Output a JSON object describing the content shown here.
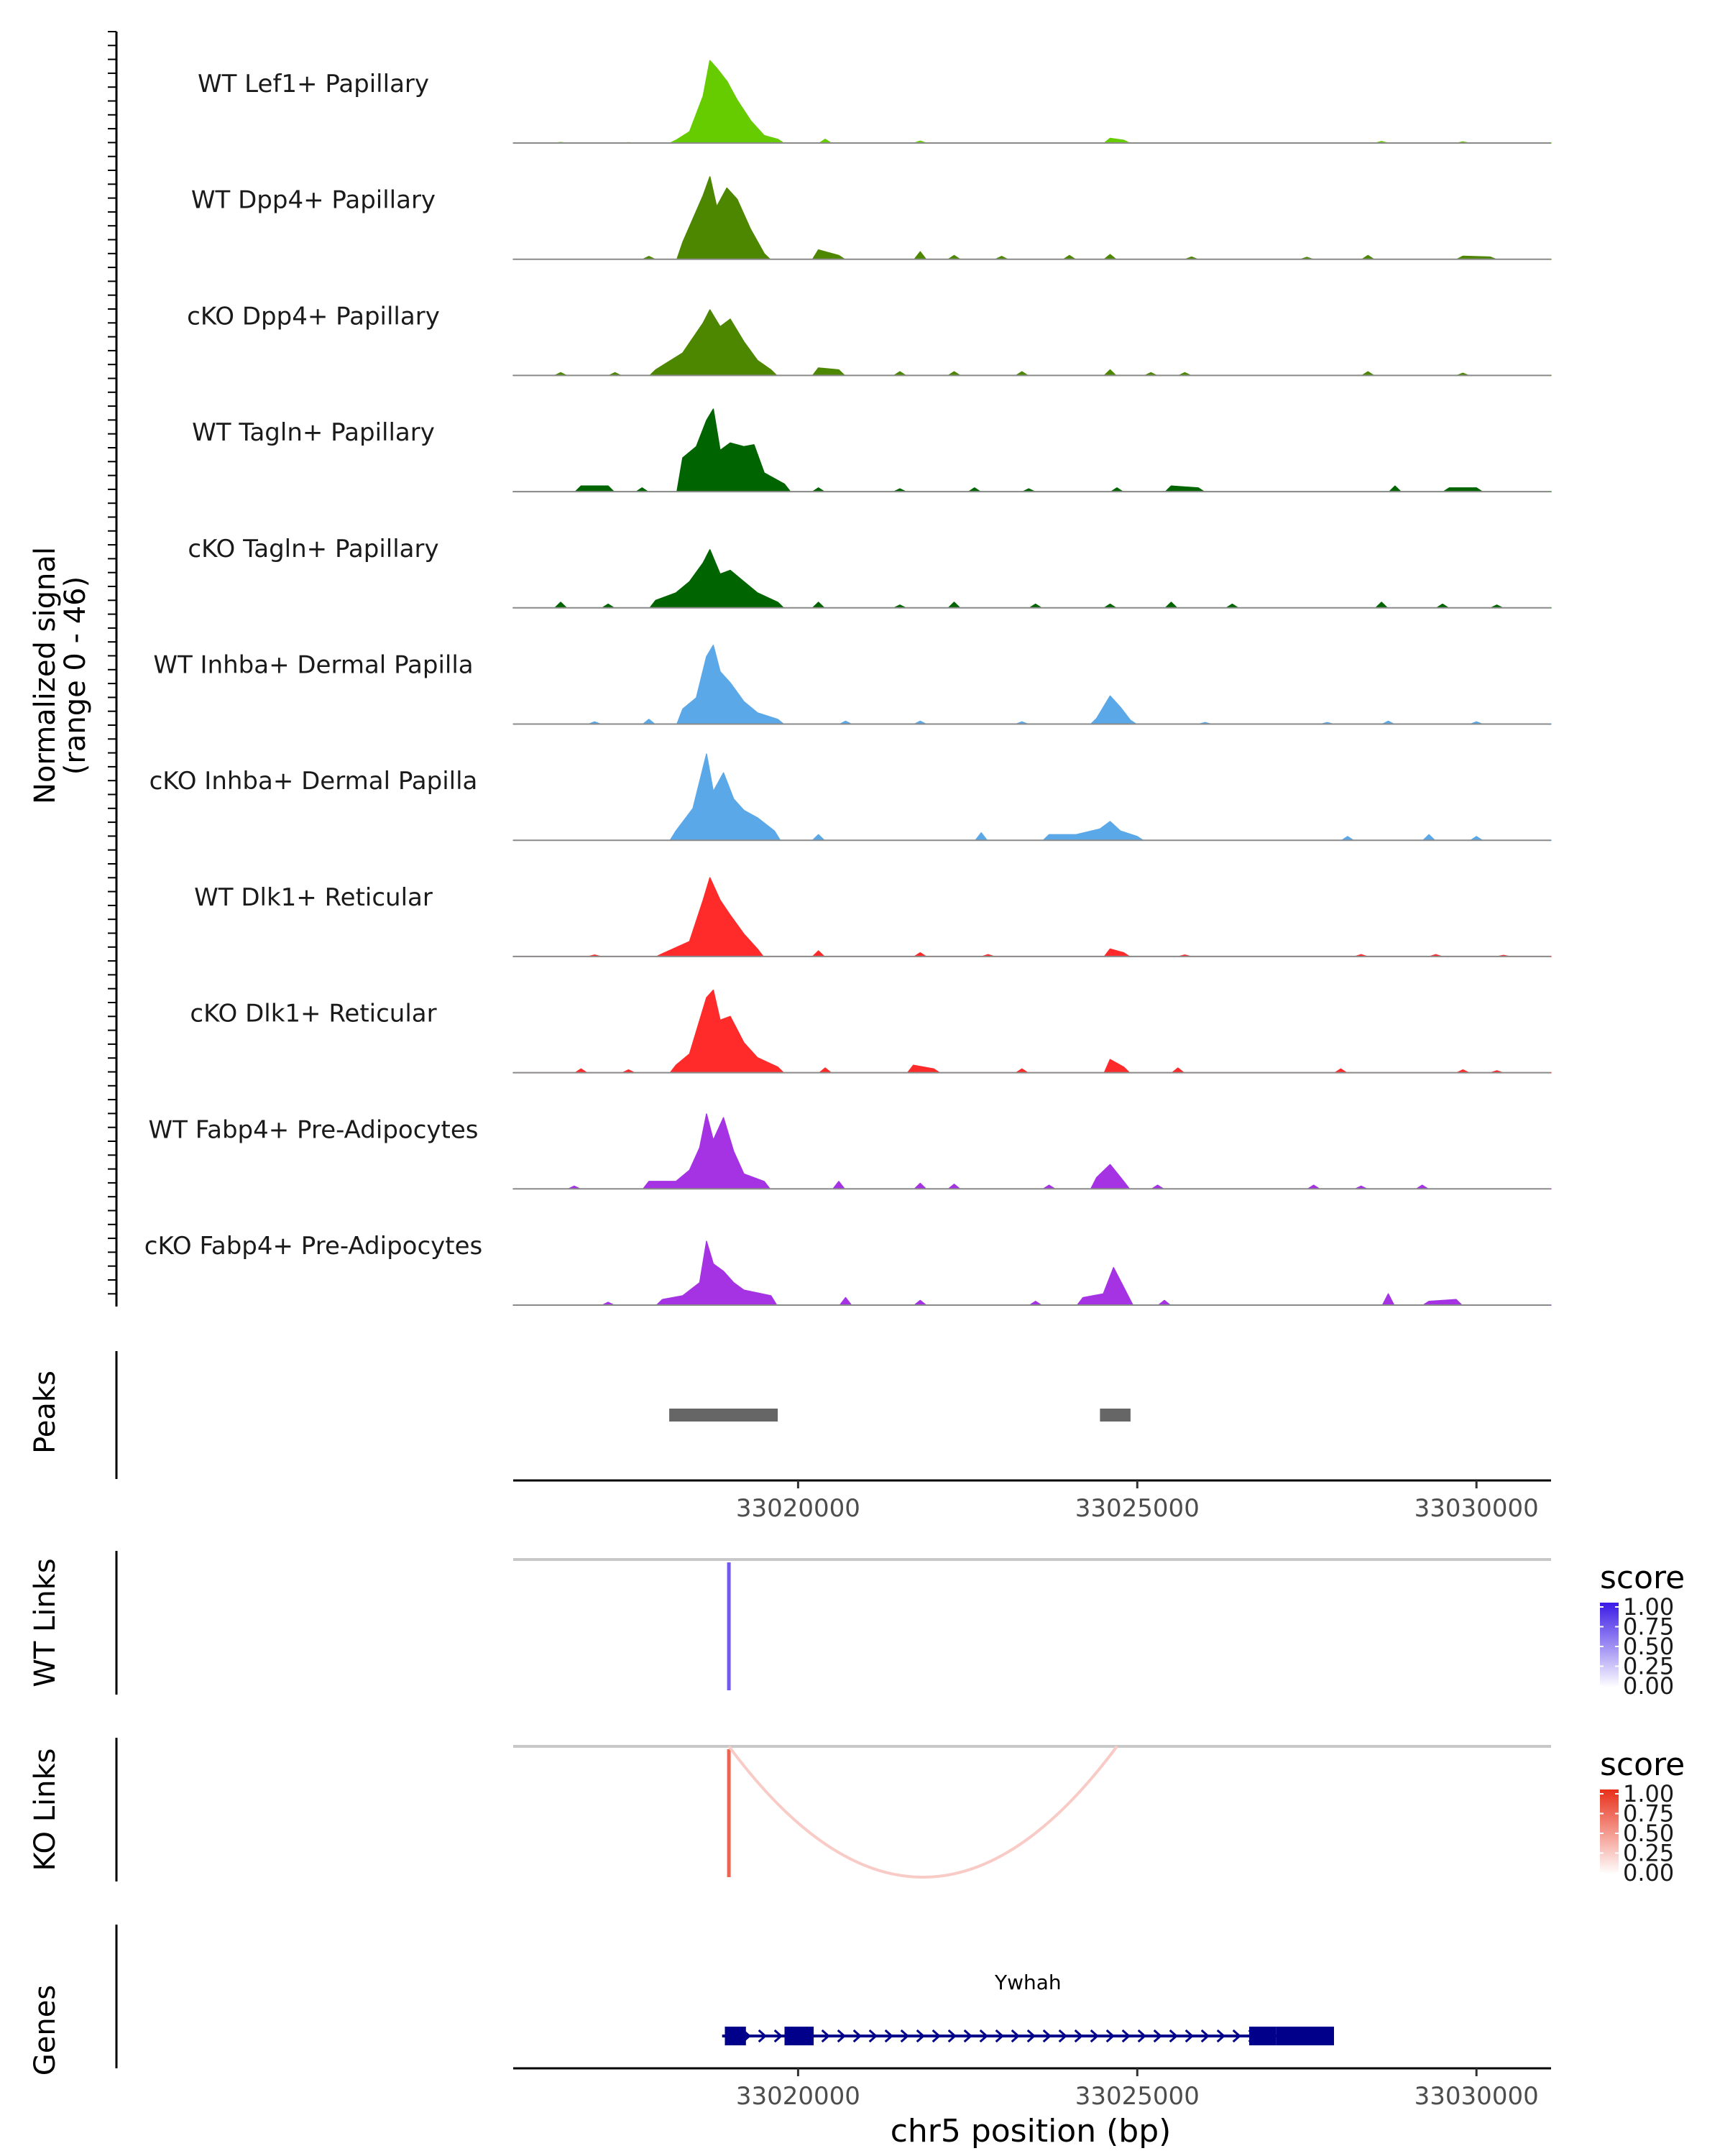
{
  "chart_data": {
    "type": "area",
    "title": "",
    "xlabel": "chr5 position (bp)",
    "x_range": [
      33015800,
      33031100
    ],
    "x_ticks": [
      33020000,
      33025000,
      33030000
    ],
    "x_tick_labels": [
      "33020000",
      "33025000",
      "33030000"
    ],
    "coverage": {
      "ylabel_line1": "Normalized signal",
      "ylabel_line2": "(range 0 - 46)",
      "y_range": [
        0,
        46
      ],
      "tracks": [
        {
          "name": "WT Lef1+ Papillary",
          "color": "#66CC00",
          "signal": [
            [
              33016500,
              0.3
            ],
            [
              33017500,
              0.2
            ],
            [
              33018200,
              1.5
            ],
            [
              33018400,
              6
            ],
            [
              33018600,
              25
            ],
            [
              33018700,
              44
            ],
            [
              33018800,
              40
            ],
            [
              33018950,
              33
            ],
            [
              33019100,
              23
            ],
            [
              33019300,
              12
            ],
            [
              33019500,
              4
            ],
            [
              33019700,
              2
            ],
            [
              33020400,
              2
            ],
            [
              33021800,
              1
            ],
            [
              33024600,
              2.5
            ],
            [
              33024800,
              1.5
            ],
            [
              33028600,
              0.8
            ],
            [
              33029800,
              0.6
            ]
          ]
        },
        {
          "name": "WT Dpp4+ Papillary",
          "color": "#4D8700",
          "signal": [
            [
              33017800,
              1.5
            ],
            [
              33018300,
              9
            ],
            [
              33018600,
              34
            ],
            [
              33018700,
              44
            ],
            [
              33018800,
              28
            ],
            [
              33018950,
              38
            ],
            [
              33019100,
              32
            ],
            [
              33019300,
              16
            ],
            [
              33019500,
              3
            ],
            [
              33020300,
              5
            ],
            [
              33020600,
              2
            ],
            [
              33021800,
              4
            ],
            [
              33022300,
              2
            ],
            [
              33023000,
              1.5
            ],
            [
              33024000,
              2
            ],
            [
              33024600,
              2.5
            ],
            [
              33025800,
              1.2
            ],
            [
              33027500,
              1
            ],
            [
              33028400,
              2
            ],
            [
              33029800,
              1.6
            ],
            [
              33030200,
              1.2
            ]
          ]
        },
        {
          "name": "cKO Dpp4+ Papillary",
          "color": "#4D8700",
          "signal": [
            [
              33016500,
              1.5
            ],
            [
              33017300,
              1.5
            ],
            [
              33017900,
              3
            ],
            [
              33018300,
              12
            ],
            [
              33018600,
              28
            ],
            [
              33018700,
              35
            ],
            [
              33018850,
              26
            ],
            [
              33019000,
              30
            ],
            [
              33019200,
              18
            ],
            [
              33019400,
              8
            ],
            [
              33019600,
              3
            ],
            [
              33020300,
              4
            ],
            [
              33020600,
              3
            ],
            [
              33021500,
              2
            ],
            [
              33022300,
              2
            ],
            [
              33023300,
              2
            ],
            [
              33024600,
              3
            ],
            [
              33025200,
              1.5
            ],
            [
              33025700,
              1.5
            ],
            [
              33028400,
              2
            ],
            [
              33029800,
              1.2
            ]
          ]
        },
        {
          "name": "WT Tagln+ Papillary",
          "color": "#006400",
          "signal": [
            [
              33016800,
              3
            ],
            [
              33017200,
              3
            ],
            [
              33017700,
              2
            ],
            [
              33018300,
              18
            ],
            [
              33018500,
              24
            ],
            [
              33018650,
              38
            ],
            [
              33018750,
              44
            ],
            [
              33018850,
              22
            ],
            [
              33019000,
              26
            ],
            [
              33019200,
              24
            ],
            [
              33019350,
              25
            ],
            [
              33019500,
              10
            ],
            [
              33019800,
              4
            ],
            [
              33020300,
              2
            ],
            [
              33021500,
              1.5
            ],
            [
              33022600,
              2
            ],
            [
              33023400,
              1.5
            ],
            [
              33024700,
              2
            ],
            [
              33025500,
              3
            ],
            [
              33025900,
              2
            ],
            [
              33028800,
              3
            ],
            [
              33029600,
              2
            ],
            [
              33030000,
              2
            ]
          ]
        },
        {
          "name": "cKO Tagln+ Papillary",
          "color": "#006400",
          "signal": [
            [
              33016500,
              3
            ],
            [
              33017200,
              2
            ],
            [
              33017900,
              4
            ],
            [
              33018200,
              8
            ],
            [
              33018400,
              14
            ],
            [
              33018600,
              24
            ],
            [
              33018700,
              31
            ],
            [
              33018850,
              18
            ],
            [
              33019000,
              20
            ],
            [
              33019200,
              14
            ],
            [
              33019400,
              8
            ],
            [
              33019700,
              3
            ],
            [
              33020300,
              3
            ],
            [
              33021500,
              1.5
            ],
            [
              33022300,
              3
            ],
            [
              33023500,
              2
            ],
            [
              33024600,
              2
            ],
            [
              33025500,
              3
            ],
            [
              33026400,
              2
            ],
            [
              33028600,
              3
            ],
            [
              33029500,
              2
            ],
            [
              33030300,
              1.5
            ]
          ]
        },
        {
          "name": "WT Inhba+ Dermal Papilla",
          "color": "#5BA8E8",
          "signal": [
            [
              33017000,
              1.2
            ],
            [
              33017800,
              2.5
            ],
            [
              33018300,
              8
            ],
            [
              33018500,
              14
            ],
            [
              33018650,
              36
            ],
            [
              33018750,
              42
            ],
            [
              33018850,
              28
            ],
            [
              33019000,
              22
            ],
            [
              33019200,
              12
            ],
            [
              33019400,
              6
            ],
            [
              33019700,
              2.5
            ],
            [
              33020700,
              1.5
            ],
            [
              33021800,
              1.5
            ],
            [
              33023300,
              1.2
            ],
            [
              33024400,
              3
            ],
            [
              33024600,
              15
            ],
            [
              33024750,
              9
            ],
            [
              33024900,
              2
            ],
            [
              33026000,
              0.8
            ],
            [
              33027800,
              0.8
            ],
            [
              33028700,
              1.5
            ],
            [
              33030000,
              1.2
            ]
          ]
        },
        {
          "name": "cKO Inhba+ Dermal Papilla",
          "color": "#5BA8E8",
          "signal": [
            [
              33018200,
              5
            ],
            [
              33018450,
              17
            ],
            [
              33018650,
              46
            ],
            [
              33018750,
              26
            ],
            [
              33018900,
              36
            ],
            [
              33019050,
              22
            ],
            [
              33019200,
              16
            ],
            [
              33019400,
              12
            ],
            [
              33019650,
              5
            ],
            [
              33020300,
              3
            ],
            [
              33022700,
              4
            ],
            [
              33023700,
              3
            ],
            [
              33024100,
              3
            ],
            [
              33024450,
              6
            ],
            [
              33024600,
              10
            ],
            [
              33024750,
              5
            ],
            [
              33025000,
              2
            ],
            [
              33028100,
              2
            ],
            [
              33029300,
              3
            ],
            [
              33030000,
              2
            ]
          ]
        },
        {
          "name": "WT Dlk1+ Reticular",
          "color": "#FF2A2A",
          "signal": [
            [
              33017000,
              0.8
            ],
            [
              33018000,
              1.5
            ],
            [
              33018400,
              8
            ],
            [
              33018600,
              30
            ],
            [
              33018700,
              42
            ],
            [
              33018850,
              30
            ],
            [
              33019000,
              22
            ],
            [
              33019200,
              12
            ],
            [
              33019400,
              4
            ],
            [
              33020300,
              3
            ],
            [
              33021800,
              2
            ],
            [
              33022800,
              1
            ],
            [
              33024600,
              4
            ],
            [
              33024800,
              2
            ],
            [
              33025700,
              0.8
            ],
            [
              33028300,
              1
            ],
            [
              33029400,
              1
            ],
            [
              33030400,
              0.6
            ]
          ]
        },
        {
          "name": "cKO Dlk1+ Reticular",
          "color": "#FF2A2A",
          "signal": [
            [
              33016800,
              2
            ],
            [
              33017500,
              1.5
            ],
            [
              33018200,
              4
            ],
            [
              33018400,
              10
            ],
            [
              33018650,
              40
            ],
            [
              33018750,
              44
            ],
            [
              33018850,
              28
            ],
            [
              33019000,
              30
            ],
            [
              33019200,
              16
            ],
            [
              33019400,
              8
            ],
            [
              33019700,
              3
            ],
            [
              33020400,
              2.5
            ],
            [
              33021700,
              4
            ],
            [
              33022000,
              2
            ],
            [
              33023300,
              2
            ],
            [
              33024600,
              7
            ],
            [
              33024800,
              3
            ],
            [
              33025600,
              2.5
            ],
            [
              33028000,
              2
            ],
            [
              33029800,
              1.5
            ],
            [
              33030300,
              1
            ]
          ]
        },
        {
          "name": "WT Fabp4+ Pre-Adipocytes",
          "color": "#A533E3",
          "signal": [
            [
              33016700,
              1.5
            ],
            [
              33017800,
              4
            ],
            [
              33018200,
              4
            ],
            [
              33018400,
              10
            ],
            [
              33018550,
              22
            ],
            [
              33018650,
              40
            ],
            [
              33018750,
              26
            ],
            [
              33018900,
              38
            ],
            [
              33019050,
              20
            ],
            [
              33019200,
              8
            ],
            [
              33019500,
              4
            ],
            [
              33020600,
              4
            ],
            [
              33021800,
              3
            ],
            [
              33022300,
              2.5
            ],
            [
              33023700,
              2
            ],
            [
              33024400,
              6
            ],
            [
              33024600,
              13
            ],
            [
              33024800,
              4
            ],
            [
              33025300,
              2
            ],
            [
              33027600,
              2
            ],
            [
              33028300,
              1.5
            ],
            [
              33029200,
              2
            ]
          ]
        },
        {
          "name": "cKO Fabp4+ Pre-Adipocytes",
          "color": "#A533E3",
          "signal": [
            [
              33017200,
              1.5
            ],
            [
              33018000,
              3
            ],
            [
              33018300,
              5
            ],
            [
              33018550,
              12
            ],
            [
              33018650,
              34
            ],
            [
              33018750,
              22
            ],
            [
              33018900,
              18
            ],
            [
              33019050,
              12
            ],
            [
              33019200,
              8
            ],
            [
              33019600,
              5
            ],
            [
              33020700,
              4
            ],
            [
              33021800,
              2.5
            ],
            [
              33023500,
              2
            ],
            [
              33024200,
              4
            ],
            [
              33024500,
              6
            ],
            [
              33024650,
              20
            ],
            [
              33024850,
              6
            ],
            [
              33025400,
              2.5
            ],
            [
              33028700,
              6
            ],
            [
              33029300,
              2
            ],
            [
              33029700,
              3
            ]
          ]
        }
      ]
    },
    "peaks": {
      "label": "Peaks",
      "regions": [
        [
          33018100,
          33019700
        ],
        [
          33024450,
          33024900
        ]
      ]
    },
    "links": [
      {
        "label": "WT Links",
        "legend_title": "score",
        "legend_ticks": [
          "1.00",
          "0.75",
          "0.50",
          "0.25",
          "0.00"
        ],
        "color_high": "#3B1AE6",
        "color_low": "#FFFFFF",
        "arcs": [
          {
            "start": 33018980,
            "end": 33018980,
            "score": 0.72
          }
        ]
      },
      {
        "label": "KO Links",
        "legend_title": "score",
        "legend_ticks": [
          "1.00",
          "0.75",
          "0.50",
          "0.25",
          "0.00"
        ],
        "color_high": "#E8301A",
        "color_low": "#FFFFFF",
        "arcs": [
          {
            "start": 33018980,
            "end": 33018980,
            "score": 0.75
          },
          {
            "start": 33018980,
            "end": 33024700,
            "score": 0.25
          }
        ]
      }
    ],
    "genes": {
      "label": "Genes",
      "color": "#00008B",
      "items": [
        {
          "name": "Ywhah",
          "start": 33018880,
          "end": 33027900,
          "exons": [
            [
              33018920,
              33019230
            ],
            [
              33019800,
              33020230
            ],
            [
              33026650,
              33027050
            ],
            [
              33027050,
              33027900
            ]
          ]
        }
      ]
    }
  }
}
